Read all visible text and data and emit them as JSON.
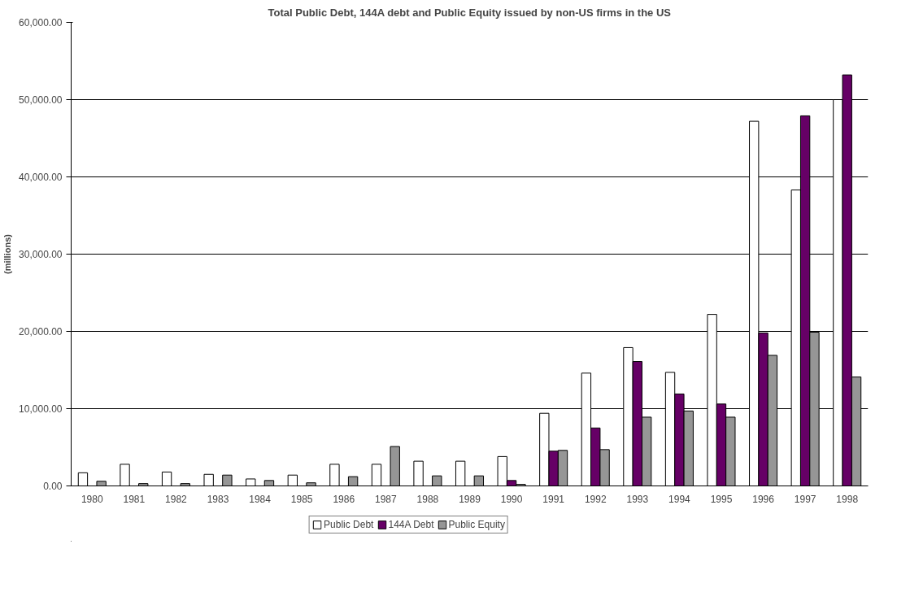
{
  "chart_data": {
    "type": "bar",
    "title": "Total Public Debt, 144A debt and Public Equity issued by non-US firms in the US",
    "ylabel": "(millions)",
    "categories": [
      "1980",
      "1981",
      "1982",
      "1983",
      "1984",
      "1985",
      "1986",
      "1987",
      "1988",
      "1989",
      "1990",
      "1991",
      "1992",
      "1993",
      "1994",
      "1995",
      "1996",
      "1997",
      "1998"
    ],
    "series": [
      {
        "name": "Public Debt",
        "color": "#ffffff",
        "values": [
          1700,
          2800,
          1800,
          1500,
          900,
          1400,
          2800,
          2800,
          3200,
          3200,
          3800,
          9400,
          14600,
          17900,
          14700,
          22200,
          47200,
          38300,
          50000
        ]
      },
      {
        "name": "144A Debt",
        "color": "#660066",
        "values": [
          null,
          null,
          null,
          null,
          null,
          null,
          null,
          null,
          null,
          null,
          700,
          4500,
          7500,
          16100,
          11900,
          10600,
          19800,
          47900,
          53200
        ]
      },
      {
        "name": "Public Equity",
        "color": "#969696",
        "values": [
          600,
          300,
          300,
          1400,
          700,
          400,
          1200,
          5100,
          1300,
          1300,
          200,
          4600,
          4700,
          8900,
          9700,
          8900,
          16900,
          19900,
          14100
        ]
      }
    ],
    "ylim": [
      0,
      60000
    ],
    "yticks": [
      {
        "value": 0,
        "label": "0.00"
      },
      {
        "value": 10000,
        "label": "10,000.00"
      },
      {
        "value": 20000,
        "label": "20,000.00"
      },
      {
        "value": 30000,
        "label": "30,000.00"
      },
      {
        "value": 40000,
        "label": "40,000.00"
      },
      {
        "value": 50000,
        "label": "50,000.00"
      },
      {
        "value": 60000,
        "label": "60,000.00"
      }
    ],
    "grid": "y",
    "legend": "bottom"
  }
}
